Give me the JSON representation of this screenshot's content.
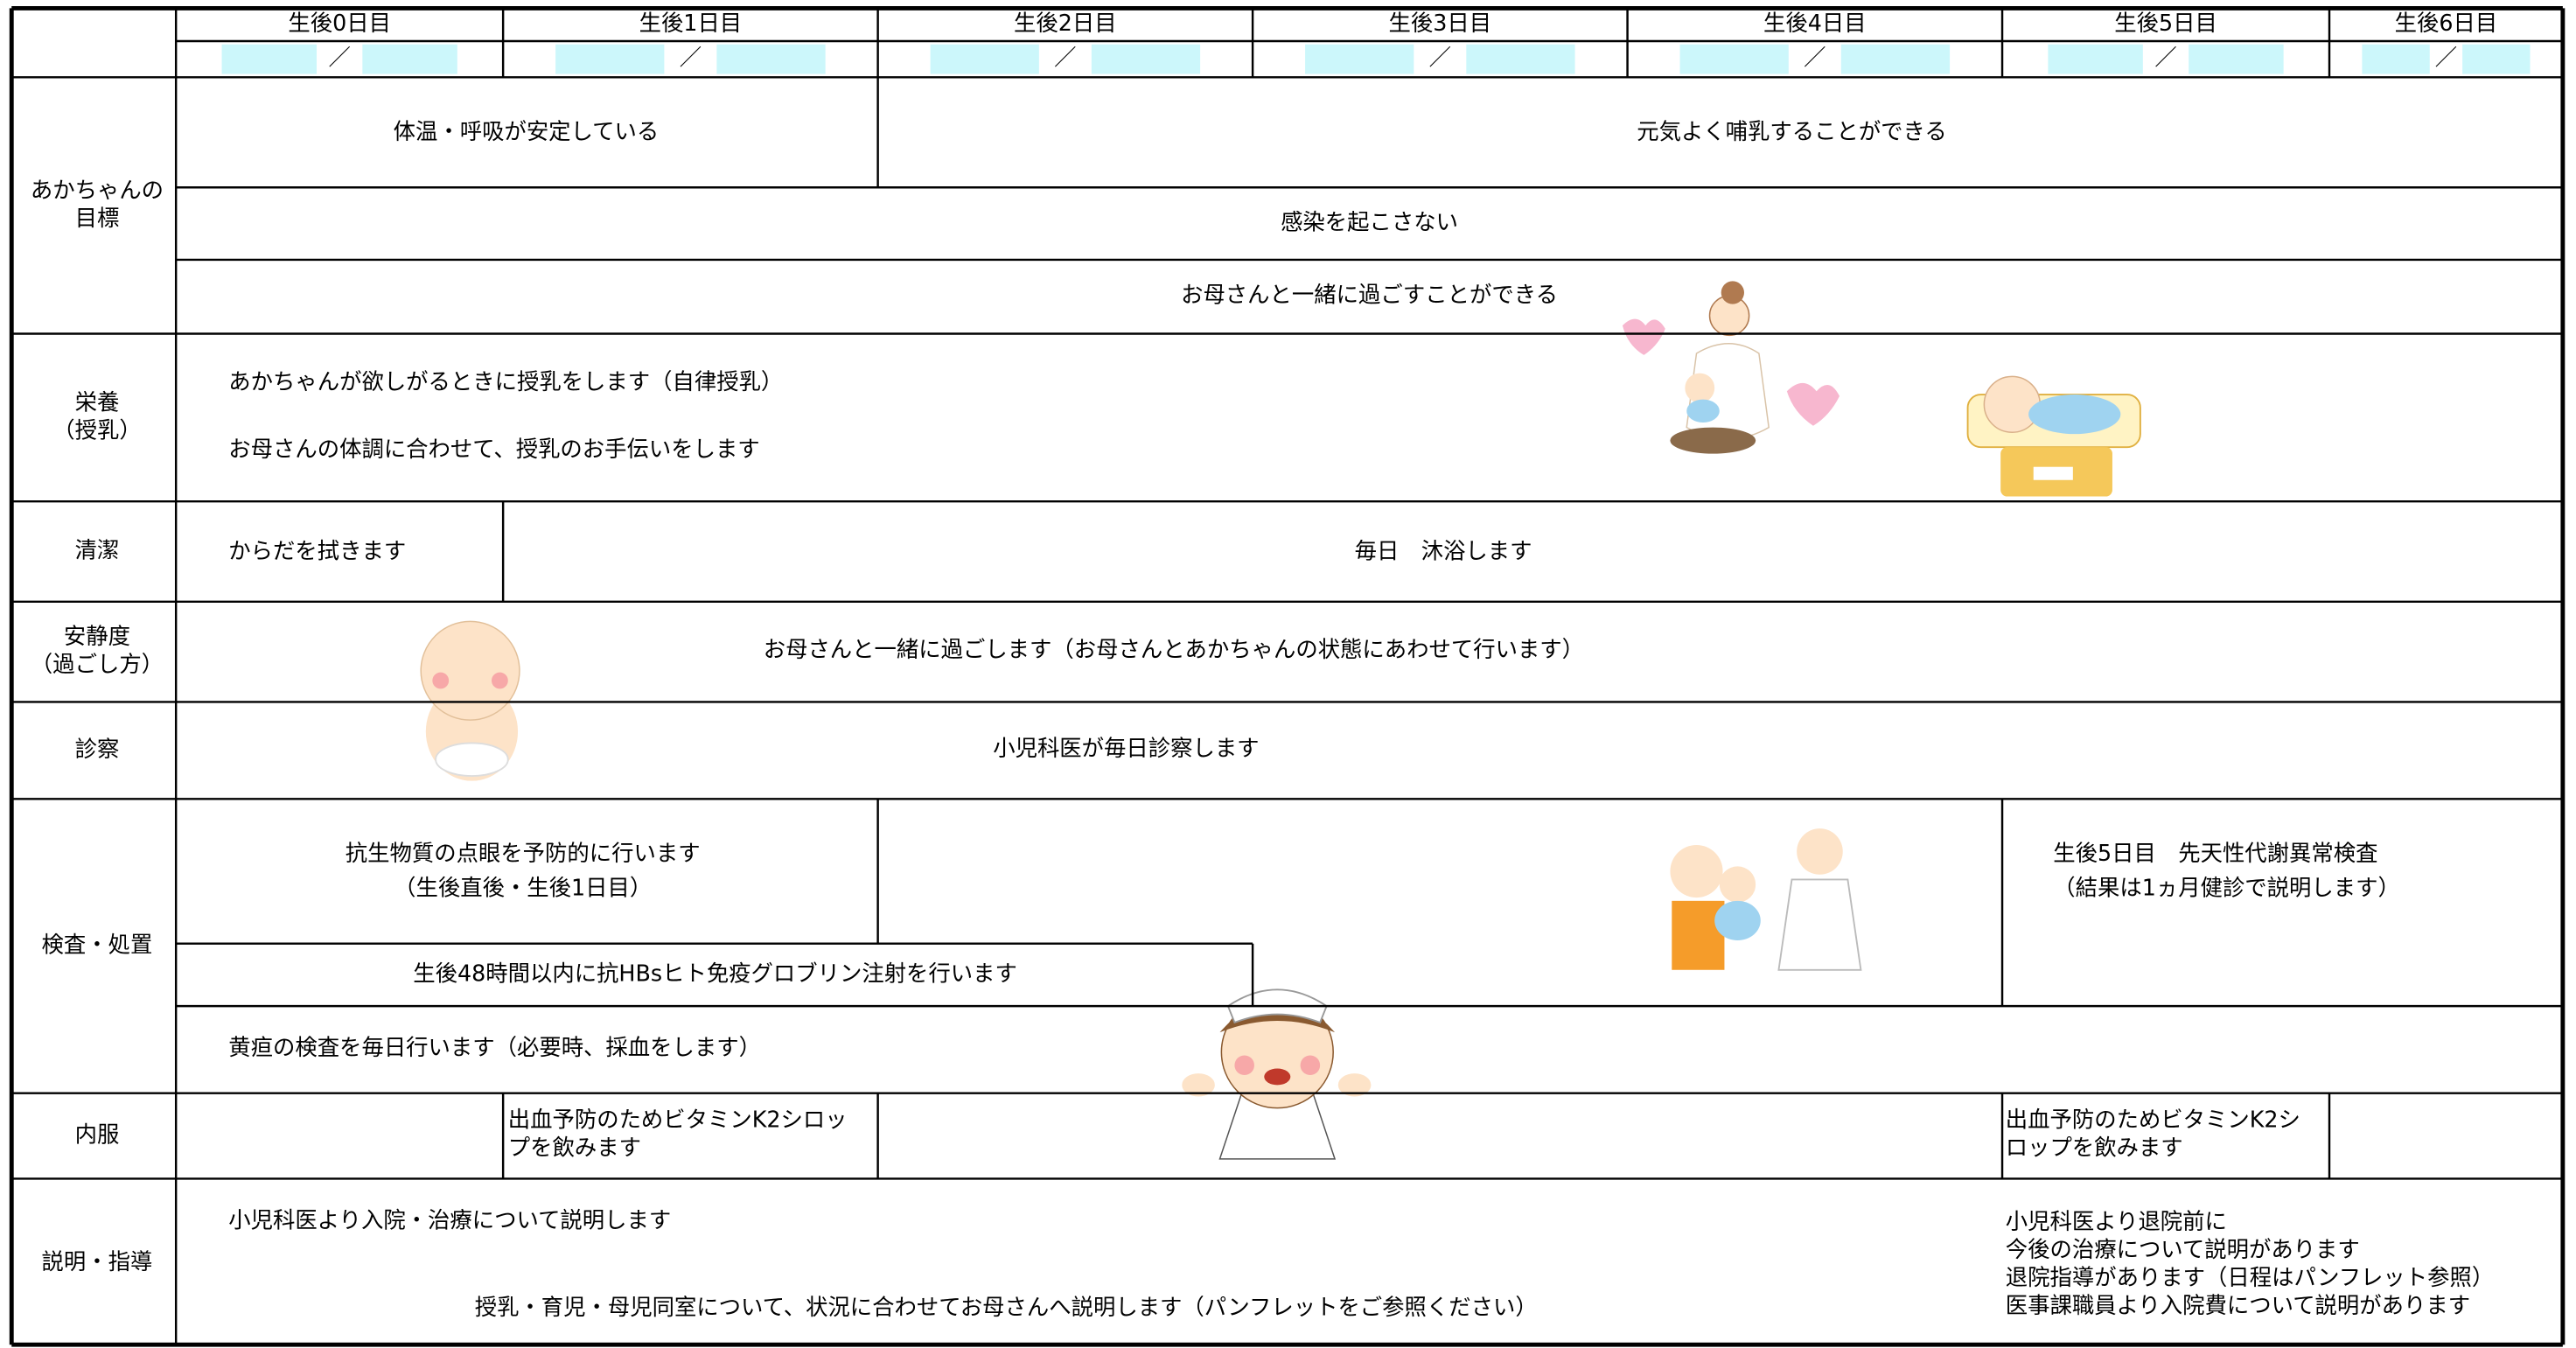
{
  "header": {
    "days": [
      "生後0日目",
      "生後1日目",
      "生後2日目",
      "生後3日目",
      "生後4日目",
      "生後5日目",
      "生後6日目"
    ],
    "date_separator": "／"
  },
  "rows": [
    {
      "label": [
        "あかちゃんの",
        "目標"
      ],
      "cells": [
        [
          "体温・呼吸が安定している"
        ],
        [
          "元気よく哺乳することができる"
        ],
        [
          "感染を起こさない"
        ],
        [
          "お母さんと一緒に過ごすことができる"
        ]
      ]
    },
    {
      "label": [
        "栄養",
        "（授乳）"
      ],
      "cells": [
        [
          "あかちゃんが欲しがるときに授乳をします（自律授乳）"
        ],
        [
          "お母さんの体調に合わせて、授乳のお手伝いをします"
        ]
      ]
    },
    {
      "label": [
        "清潔"
      ],
      "cells": [
        [
          "からだを拭きます"
        ],
        [
          "毎日　沐浴します"
        ]
      ]
    },
    {
      "label": [
        "安静度",
        "（過ごし方）"
      ],
      "cells": [
        [
          "お母さんと一緒に過ごします（お母さんとあかちゃんの状態にあわせて行います）"
        ]
      ]
    },
    {
      "label": [
        "診察"
      ],
      "cells": [
        [
          "小児科医が毎日診察します"
        ]
      ]
    },
    {
      "label": [
        "検査・処置"
      ],
      "cells": [
        [
          "抗生物質の点眼を予防的に行います",
          "（生後直後・生後1日目）"
        ],
        [
          "生後5日目　先天性代謝異常検査",
          "（結果は1ヵ月健診で説明します）"
        ],
        [
          "生後48時間以内に抗HBsヒト免疫グロブリン注射を行います"
        ],
        [
          "黄疸の検査を毎日行います（必要時、採血をします）"
        ]
      ]
    },
    {
      "label": [
        "内服"
      ],
      "cells": [
        [
          "出血予防のためビタミンK2シロッ",
          "プを飲みます"
        ],
        [
          "出血予防のためビタミンK2シ",
          "ロップを飲みます"
        ]
      ]
    },
    {
      "label": [
        "説明・指導"
      ],
      "cells": [
        [
          "小児科医より入院・治療について説明します"
        ],
        [
          "授乳・育児・母児同室について、状況に合わせてお母さんへ説明します（パンフレットをご参照ください）"
        ],
        [
          "小児科医より退院前に",
          "今後の治療について説明があります",
          "退院指導があります（日程はパンフレット参照）",
          "医事課職員より入院費について説明があります"
        ]
      ]
    }
  ]
}
